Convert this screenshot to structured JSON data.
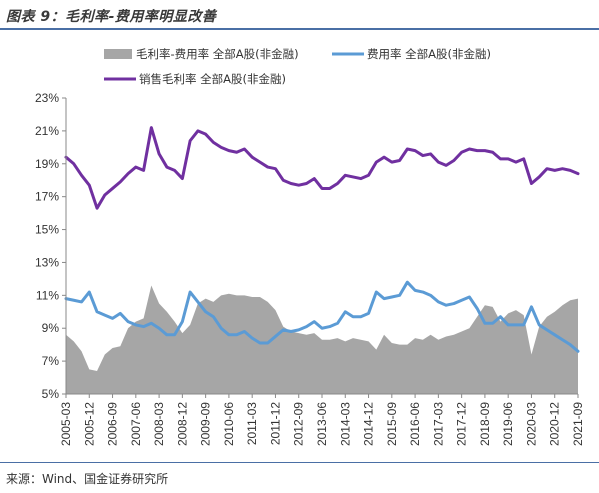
{
  "title": "图表 9：毛利率-费用率明显改善",
  "source": "来源：Wind、国金证券研究所",
  "chart_data": {
    "type": "line",
    "x": [
      "2005-03",
      "2005-06",
      "2005-09",
      "2005-12",
      "2006-03",
      "2006-06",
      "2006-09",
      "2006-12",
      "2007-03",
      "2007-06",
      "2007-09",
      "2007-12",
      "2008-03",
      "2008-06",
      "2008-09",
      "2008-12",
      "2009-03",
      "2009-06",
      "2009-09",
      "2009-12",
      "2010-03",
      "2010-06",
      "2010-09",
      "2010-12",
      "2011-03",
      "2011-06",
      "2011-09",
      "2011-12",
      "2012-03",
      "2012-06",
      "2012-09",
      "2012-12",
      "2013-03",
      "2013-06",
      "2013-09",
      "2013-12",
      "2014-03",
      "2014-06",
      "2014-09",
      "2014-12",
      "2015-03",
      "2015-06",
      "2015-09",
      "2015-12",
      "2016-03",
      "2016-06",
      "2016-09",
      "2016-12",
      "2017-03",
      "2017-06",
      "2017-09",
      "2017-12",
      "2018-03",
      "2018-06",
      "2018-09",
      "2018-12",
      "2019-03",
      "2019-06",
      "2019-09",
      "2019-12",
      "2020-03",
      "2020-06",
      "2020-09",
      "2020-12",
      "2021-03",
      "2021-06",
      "2021-09"
    ],
    "tick_labels": [
      "2005-03",
      "2005-12",
      "2006-09",
      "2007-06",
      "2008-03",
      "2008-12",
      "2009-09",
      "2010-06",
      "2011-03",
      "2011-12",
      "2012-09",
      "2013-06",
      "2014-03",
      "2014-12",
      "2015-09",
      "2016-06",
      "2017-03",
      "2017-12",
      "2018-09",
      "2019-06",
      "2020-03",
      "2020-12",
      "2021-09"
    ],
    "y_ticks": [
      "23%",
      "21%",
      "19%",
      "17%",
      "15%",
      "13%",
      "11%",
      "9%",
      "7%",
      "5%"
    ],
    "ylim": [
      5,
      23
    ],
    "series": [
      {
        "name": "毛利率-费用率 全部A股(非金融)",
        "type": "area",
        "color": "#a6a6a6",
        "values": [
          8.6,
          8.2,
          7.6,
          6.5,
          6.4,
          7.4,
          7.8,
          7.9,
          9.0,
          9.4,
          9.6,
          11.6,
          10.5,
          10.0,
          9.4,
          8.7,
          9.2,
          10.5,
          10.8,
          10.6,
          11.0,
          11.1,
          11.0,
          11.0,
          10.9,
          10.9,
          10.6,
          10.1,
          9.1,
          8.8,
          8.7,
          8.6,
          8.7,
          8.3,
          8.3,
          8.4,
          8.2,
          8.4,
          8.3,
          8.2,
          7.7,
          8.6,
          8.1,
          8.0,
          8.0,
          8.4,
          8.3,
          8.6,
          8.3,
          8.5,
          8.6,
          8.8,
          9.0,
          9.7,
          10.4,
          10.3,
          9.4,
          9.9,
          10.1,
          9.8,
          7.4,
          9.1,
          9.7,
          10.0,
          10.4,
          10.7,
          10.8
        ]
      },
      {
        "name": "费用率 全部A股(非金融)",
        "type": "line",
        "color": "#5b9bd5",
        "values": [
          10.8,
          10.7,
          10.6,
          11.2,
          10.0,
          9.8,
          9.6,
          9.9,
          9.4,
          9.2,
          9.1,
          9.3,
          9.0,
          8.6,
          8.6,
          9.4,
          11.2,
          10.6,
          10.0,
          9.7,
          9.0,
          8.6,
          8.6,
          8.8,
          8.4,
          8.1,
          8.1,
          8.5,
          8.9,
          8.8,
          8.9,
          9.1,
          9.4,
          9.0,
          9.1,
          9.3,
          10.0,
          9.7,
          9.7,
          9.9,
          11.2,
          10.8,
          10.9,
          11.0,
          11.8,
          11.3,
          11.2,
          11.0,
          10.6,
          10.4,
          10.5,
          10.7,
          10.9,
          10.2,
          9.3,
          9.3,
          9.7,
          9.2,
          9.2,
          9.2,
          10.3,
          9.2,
          8.9,
          8.6,
          8.3,
          8.0,
          7.6
        ]
      },
      {
        "name": "销售毛利率 全部A股(非金融)",
        "type": "line",
        "color": "#7030a0",
        "values": [
          19.4,
          19.0,
          18.3,
          17.7,
          16.3,
          17.1,
          17.5,
          17.9,
          18.4,
          18.8,
          18.6,
          21.2,
          19.6,
          18.8,
          18.6,
          18.1,
          20.4,
          21.0,
          20.8,
          20.3,
          20.0,
          19.8,
          19.7,
          19.9,
          19.4,
          19.1,
          18.8,
          18.7,
          18.0,
          17.8,
          17.7,
          17.8,
          18.1,
          17.5,
          17.5,
          17.8,
          18.3,
          18.2,
          18.1,
          18.3,
          19.1,
          19.4,
          19.1,
          19.2,
          19.9,
          19.8,
          19.5,
          19.6,
          19.1,
          18.9,
          19.2,
          19.7,
          19.9,
          19.8,
          19.8,
          19.7,
          19.3,
          19.3,
          19.1,
          19.3,
          17.8,
          18.2,
          18.7,
          18.6,
          18.7,
          18.6,
          18.4
        ]
      }
    ]
  }
}
